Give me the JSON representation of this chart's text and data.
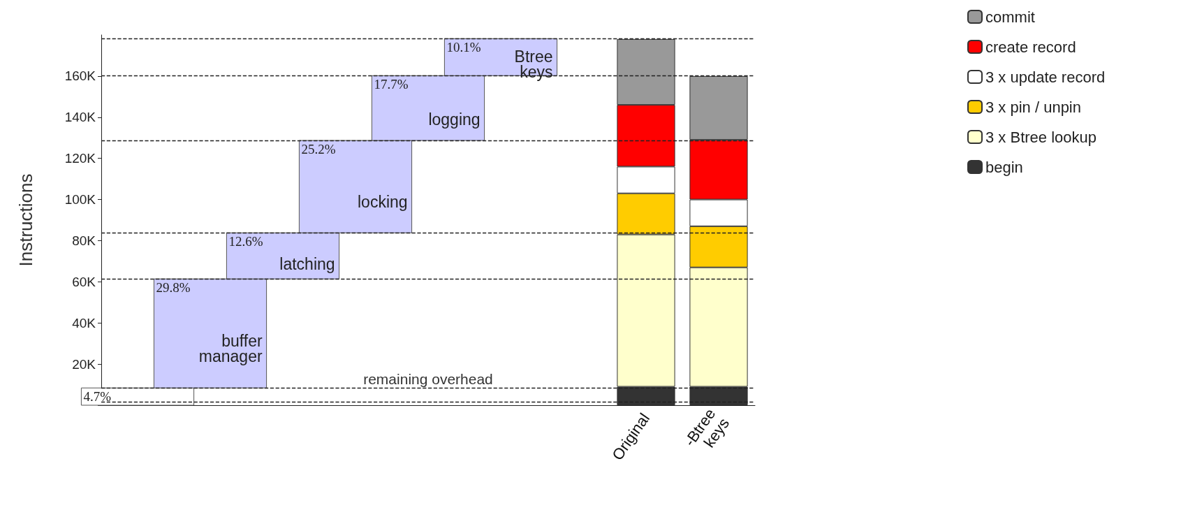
{
  "chart_data": {
    "type": "bar",
    "stacked": true,
    "ylabel": "Instructions",
    "categories": [
      null,
      null,
      null,
      null,
      null,
      null,
      null,
      "Original",
      "-Btree\nkeys"
    ],
    "ylim": [
      0,
      180
    ],
    "yticks": [
      {
        "value": 0,
        "label": null
      },
      {
        "value": 20,
        "label": "20K"
      },
      {
        "value": 40,
        "label": "40K"
      },
      {
        "value": 60,
        "label": "60K"
      },
      {
        "value": 80,
        "label": "80K"
      },
      {
        "value": 100,
        "label": "100K"
      },
      {
        "value": 120,
        "label": "120K"
      },
      {
        "value": 140,
        "label": "140K"
      },
      {
        "value": 160,
        "label": "160K"
      }
    ],
    "series": [
      {
        "type": "bar",
        "values": [
          8.4,
          53,
          22.4,
          44.9,
          31.5,
          18,
          null,
          null,
          null
        ],
        "base": [
          0,
          8.4,
          61.4,
          83.8,
          128.7,
          160.2,
          null,
          null,
          null
        ],
        "colors": [
          "#ffffff",
          "#ccccff",
          "#ccccff",
          "#ccccff",
          "#ccccff",
          "#ccccff",
          null,
          null,
          null
        ]
      },
      {
        "name": "begin",
        "color": "#333333",
        "values": [
          null,
          null,
          null,
          null,
          null,
          null,
          null,
          9,
          9
        ]
      },
      {
        "name": "3 x Btree lookup",
        "color": "#ffffcc",
        "values": [
          null,
          null,
          null,
          null,
          null,
          null,
          null,
          74,
          58
        ]
      },
      {
        "name": "3 x pin / unpin",
        "color": "#ffcc00",
        "values": [
          null,
          null,
          null,
          null,
          null,
          null,
          null,
          20,
          20
        ]
      },
      {
        "name": "3 x update record",
        "color": "#ffffff",
        "values": [
          null,
          null,
          null,
          null,
          null,
          null,
          null,
          13,
          13
        ]
      },
      {
        "name": "create record",
        "color": "#ff0000",
        "values": [
          null,
          null,
          null,
          null,
          null,
          null,
          null,
          30,
          29
        ]
      },
      {
        "name": "commit",
        "color": "#999999",
        "values": [
          null,
          null,
          null,
          null,
          null,
          null,
          null,
          32,
          31
        ]
      }
    ],
    "ref_lines": [
      {
        "axis": "y",
        "value": 1.7,
        "line_style": "dashed"
      },
      {
        "axis": "y",
        "value": 8.4,
        "line_style": "dashed",
        "label": "remaining overhead"
      },
      {
        "axis": "y",
        "value": 61.4,
        "line_style": "dashed"
      },
      {
        "axis": "y",
        "value": 83.8,
        "line_style": "dashed"
      },
      {
        "axis": "y",
        "value": 128.7,
        "line_style": "dashed"
      },
      {
        "axis": "y",
        "value": 160.2,
        "line_style": "dashed"
      },
      {
        "axis": "y",
        "value": 178.2,
        "line_style": "dashed"
      }
    ],
    "annotations": [
      {
        "text": "4.7%",
        "y": 8.4
      },
      {
        "text": "29.8%",
        "y": 61.4
      },
      "buffer\nmanager",
      {
        "text": "12.6%",
        "y": 83.8
      },
      "latching",
      {
        "text": "25.2%",
        "y": 128.7
      },
      "locking",
      {
        "text": "17.7%",
        "y": 160.2
      },
      "logging",
      {
        "text": "10.1%",
        "y": 178.2
      },
      "Btree\nkeys"
    ],
    "legend": "top right",
    "grid": false
  }
}
